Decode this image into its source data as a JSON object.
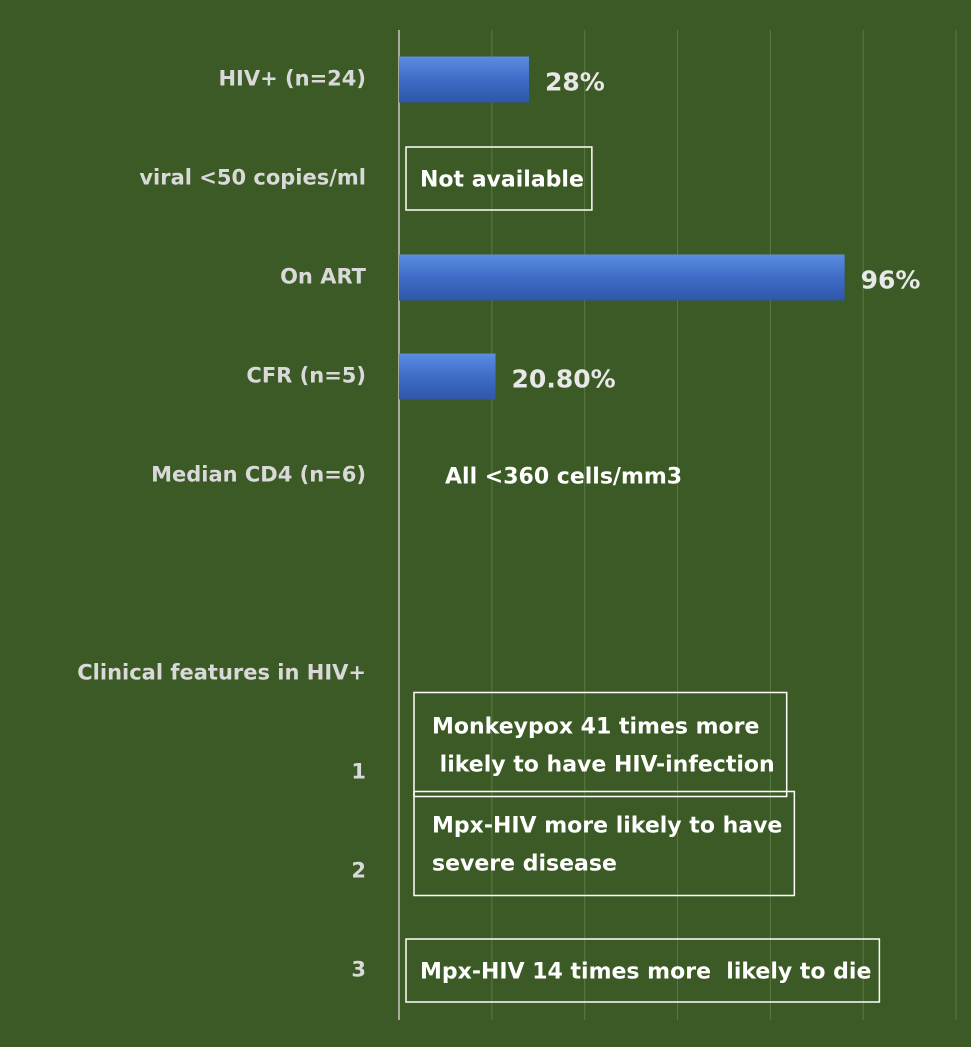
{
  "chart_data": {
    "type": "bar",
    "orientation": "horizontal",
    "categories": [
      "HIV+ (n=24)",
      "viral <50 copies/ml",
      "On ART",
      "CFR (n=5)",
      "Median CD4 (n=6)",
      null,
      "Clinical features in HIV+",
      "1",
      "2",
      "3"
    ],
    "values": [
      28,
      null,
      96,
      20.8,
      null,
      null,
      null,
      null,
      null,
      null
    ],
    "value_labels": [
      "28%",
      null,
      "96%",
      "20.80%",
      null,
      null,
      null,
      null,
      null,
      null
    ],
    "notes": [
      null,
      "Not available",
      null,
      null,
      "All <360 cells/mm3",
      null,
      null,
      [
        "Monkeypox 41 times more",
        " likely to have HIV-infection"
      ],
      [
        "Mpx-HIV more likely to have",
        "severe disease"
      ],
      "Mpx-HIV 14 times more  likely to die"
    ],
    "note_boxed": [
      false,
      true,
      false,
      false,
      false,
      false,
      false,
      true,
      true,
      true
    ],
    "color": "#4472c4",
    "background": "#3c5a25",
    "xlim": [
      0,
      120
    ],
    "xticks": [
      0,
      20,
      40,
      60,
      80,
      100,
      120
    ],
    "grid": true
  }
}
